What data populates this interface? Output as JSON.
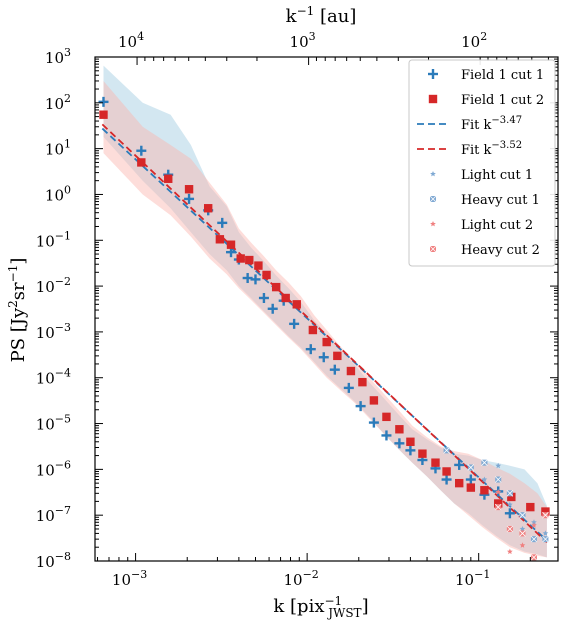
{
  "chart_data": {
    "type": "scatter",
    "log_x": true,
    "log_y": true,
    "xlabel": "k [pix",
    "xlabel_sup": "−1",
    "xlabel_sub": "JWST",
    "xlabel_close": "]",
    "ylabel": "PS [Jy",
    "ylabel_sup1": "2",
    "ylabel_mid": "sr",
    "ylabel_sup2": "−1",
    "ylabel_close": "]",
    "top_axis_label": "k",
    "top_axis_label_sup": "−1",
    "top_axis_label_unit": " [au]",
    "xlim": [
      0.00058,
      0.29
    ],
    "ylim": [
      1e-08,
      1000
    ],
    "x_ticks": [
      {
        "value": 0.001,
        "base": "10",
        "exp": "−3"
      },
      {
        "value": 0.01,
        "base": "10",
        "exp": "−2"
      },
      {
        "value": 0.1,
        "base": "10",
        "exp": "−1"
      }
    ],
    "y_ticks": [
      {
        "value": 1000,
        "base": "10",
        "exp": "3"
      },
      {
        "value": 100,
        "base": "10",
        "exp": "2"
      },
      {
        "value": 10,
        "base": "10",
        "exp": "1"
      },
      {
        "value": 1,
        "base": "10",
        "exp": "0"
      },
      {
        "value": 0.1,
        "base": "10",
        "exp": "−1"
      },
      {
        "value": 0.01,
        "base": "10",
        "exp": "−2"
      },
      {
        "value": 0.001,
        "base": "10",
        "exp": "−3"
      },
      {
        "value": 0.0001,
        "base": "10",
        "exp": "−4"
      },
      {
        "value": 1e-05,
        "base": "10",
        "exp": "−5"
      },
      {
        "value": 1e-06,
        "base": "10",
        "exp": "−6"
      },
      {
        "value": 1e-07,
        "base": "10",
        "exp": "−7"
      },
      {
        "value": 1e-08,
        "base": "10",
        "exp": "−8"
      }
    ],
    "top_ticks": [
      {
        "au": 10000,
        "base": "10",
        "exp": "4"
      },
      {
        "au": 1000,
        "base": "10",
        "exp": "3"
      },
      {
        "au": 100,
        "base": "10",
        "exp": "2"
      }
    ],
    "top_axis_k_per_inverse_au": 10.2,
    "series": [
      {
        "name": "Field 1 cut 1",
        "marker": "plus",
        "color": "#2b7bba",
        "x": [
          0.00065,
          0.00108,
          0.00155,
          0.00205,
          0.00265,
          0.0032,
          0.0036,
          0.004,
          0.0045,
          0.005,
          0.0056,
          0.0063,
          0.0073,
          0.0084,
          0.0105,
          0.0125,
          0.0145,
          0.0175,
          0.0205,
          0.0245,
          0.029,
          0.0345,
          0.04,
          0.047,
          0.056,
          0.065,
          0.077,
          0.09,
          0.108,
          0.13,
          0.152
        ],
        "y": [
          105,
          9,
          2.7,
          0.8,
          0.45,
          0.24,
          0.055,
          0.038,
          0.015,
          0.014,
          0.0055,
          0.0032,
          0.0048,
          0.0015,
          0.00042,
          0.00028,
          0.00015,
          6e-05,
          2.4e-05,
          1.05e-05,
          5.5e-06,
          3.7e-06,
          2.6e-06,
          1.6e-06,
          1.05e-06,
          6e-07,
          1.25e-06,
          6e-07,
          2.8e-07,
          3.3e-07,
          1.1e-07
        ]
      },
      {
        "name": "Field 1 cut 2",
        "marker": "square",
        "color": "#d62728",
        "x": [
          0.00065,
          0.00108,
          0.00155,
          0.00205,
          0.00265,
          0.0031,
          0.0036,
          0.0041,
          0.0046,
          0.0052,
          0.0058,
          0.0066,
          0.0075,
          0.0087,
          0.0108,
          0.013,
          0.015,
          0.018,
          0.021,
          0.0245,
          0.029,
          0.0345,
          0.04,
          0.047,
          0.056,
          0.065,
          0.077,
          0.09,
          0.108,
          0.13,
          0.155,
          0.2,
          0.245
        ],
        "y": [
          55,
          5,
          2.2,
          1.3,
          0.5,
          0.105,
          0.08,
          0.04,
          0.037,
          0.028,
          0.0175,
          0.0095,
          0.0055,
          0.004,
          0.0011,
          0.0006,
          0.0003,
          0.00014,
          8e-05,
          3.2e-05,
          1.4e-05,
          7.5e-06,
          4e-06,
          2.2e-06,
          1.4e-06,
          9e-07,
          5e-07,
          4e-07,
          3.5e-07,
          1.8e-07,
          2.5e-07,
          1.5e-07,
          1.2e-07
        ]
      },
      {
        "name": "Fit k",
        "name_sup": "−3.47",
        "marker": "dash",
        "color": "#2b7bba",
        "slope": -3.47,
        "norm_x": 0.00065,
        "norm_y": 26
      },
      {
        "name": "Fit k",
        "name_sup": "−3.52",
        "marker": "dash",
        "color": "#d62728",
        "slope": -3.52,
        "norm_x": 0.00065,
        "norm_y": 32
      },
      {
        "name": "Light cut 1",
        "marker": "star",
        "color": "#7fa9d3",
        "x": [
          0.108,
          0.13,
          0.152,
          0.18,
          0.21,
          0.245
        ],
        "y": [
          6e-07,
          1.2e-06,
          1.7e-07,
          5e-08,
          7e-08,
          4e-08
        ]
      },
      {
        "name": "Heavy cut 1",
        "marker": "xsq",
        "color": "#7fa9d3",
        "x": [
          0.065,
          0.09,
          0.108,
          0.13,
          0.152,
          0.18,
          0.21,
          0.245
        ],
        "y": [
          2.6e-06,
          1.1e-06,
          1.4e-06,
          6e-07,
          3e-07,
          1e-07,
          3e-08,
          3e-08
        ]
      },
      {
        "name": "Light cut 2",
        "marker": "star",
        "color": "#f08080",
        "x": [
          0.13,
          0.152,
          0.18,
          0.21
        ],
        "y": [
          3.2e-07,
          1.6e-08,
          2.2e-08,
          6e-08
        ]
      },
      {
        "name": "Heavy cut 2",
        "marker": "xsq",
        "color": "#f08080",
        "x": [
          0.13,
          0.152,
          0.18,
          0.21,
          0.245
        ],
        "y": [
          1.5e-07,
          5e-08,
          4e-08,
          1.2e-08,
          1e-07
        ]
      }
    ],
    "bands": [
      {
        "color": "#9ecae1",
        "x": [
          0.00065,
          0.0011,
          0.0016,
          0.0021,
          0.0027,
          0.0034,
          0.004,
          0.0047,
          0.0056,
          0.0066,
          0.0078,
          0.0092,
          0.011,
          0.013,
          0.0155,
          0.019,
          0.023,
          0.028,
          0.034,
          0.041,
          0.05,
          0.06,
          0.072,
          0.087,
          0.105,
          0.127,
          0.152,
          0.185,
          0.22,
          0.25
        ],
        "upper": [
          650,
          100,
          55,
          12,
          1.5,
          0.55,
          0.15,
          0.07,
          0.035,
          0.017,
          0.009,
          0.0045,
          0.0018,
          0.0009,
          0.00042,
          0.00019,
          8e-05,
          3.6e-05,
          1.6e-05,
          7.5e-06,
          4.5e-06,
          3e-06,
          2.2e-06,
          2e-06,
          1.6e-06,
          1.4e-06,
          1.2e-06,
          1e-06,
          5e-07,
          1.6e-07
        ],
        "lower": [
          18,
          2,
          0.5,
          0.15,
          0.05,
          0.022,
          0.01,
          0.0055,
          0.0028,
          0.0015,
          0.0008,
          0.00045,
          0.00022,
          0.00011,
          6e-05,
          3e-05,
          1.4e-05,
          6e-06,
          2.8e-06,
          1.4e-06,
          7e-07,
          3.5e-07,
          1.8e-07,
          1.1e-07,
          6e-08,
          3.5e-08,
          2.2e-08,
          1.6e-08,
          1.4e-08,
          1.2e-08
        ]
      },
      {
        "color": "#fbb4ae",
        "x": [
          0.00065,
          0.0011,
          0.0016,
          0.0021,
          0.0027,
          0.0034,
          0.004,
          0.0047,
          0.0056,
          0.0066,
          0.0078,
          0.0092,
          0.011,
          0.013,
          0.0155,
          0.019,
          0.023,
          0.028,
          0.034,
          0.041,
          0.05,
          0.06,
          0.072,
          0.087,
          0.105,
          0.127,
          0.152,
          0.185,
          0.22,
          0.25
        ],
        "upper": [
          300,
          30,
          12,
          6,
          1.8,
          0.6,
          0.18,
          0.09,
          0.045,
          0.022,
          0.012,
          0.006,
          0.0023,
          0.0011,
          0.0005,
          0.00023,
          0.0001,
          4.5e-05,
          2e-05,
          9e-06,
          5e-06,
          3.2e-06,
          2.5e-06,
          2.2e-06,
          1.6e-06,
          1.1e-06,
          8e-07,
          5e-07,
          3e-07,
          1.5e-07
        ],
        "lower": [
          8,
          1,
          0.35,
          0.12,
          0.04,
          0.018,
          0.009,
          0.005,
          0.0026,
          0.0014,
          0.00075,
          0.00042,
          0.0002,
          0.0001,
          5.5e-05,
          2.8e-05,
          1.3e-05,
          6e-06,
          2.8e-06,
          1.4e-06,
          7e-07,
          3.5e-07,
          1.8e-07,
          1e-07,
          5.5e-08,
          3.2e-08,
          2e-08,
          1.5e-08,
          1.3e-08,
          1.2e-08
        ]
      }
    ],
    "legend_position": "top-right"
  }
}
